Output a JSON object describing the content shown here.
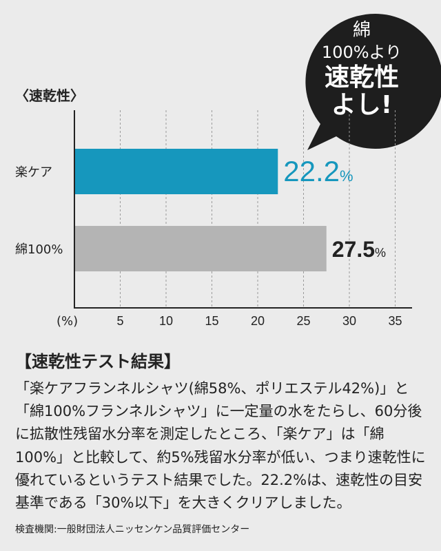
{
  "bubble": {
    "line1": "綿",
    "line2": "100%より",
    "line3": "速乾性",
    "line4": "よし!",
    "color": "#1e1e1e"
  },
  "chart_data": {
    "type": "bar",
    "orientation": "horizontal",
    "title": "〈速乾性〉",
    "categories": [
      "楽ケア",
      "綿100%"
    ],
    "values": [
      22.2,
      27.5
    ],
    "value_labels": [
      "22.2",
      "27.5"
    ],
    "unit_suffix": "%",
    "colors": [
      "#1697bd",
      "#b4b4b4"
    ],
    "label_colors": [
      "#1697bd",
      "#222222"
    ],
    "xlim": [
      0,
      35
    ],
    "xticks": [
      5,
      10,
      15,
      20,
      25,
      30,
      35
    ],
    "xunit_label": "(%)",
    "grid": true
  },
  "result": {
    "title": "【速乾性テスト結果】",
    "body": "「楽ケアフランネルシャツ(綿58%、ポリエステル42%)」と「綿100%フランネルシャツ」に一定量の水をたらし、60分後に拡散性残留水分率を測定したところ、「楽ケア」は「綿100%」と比較して、約5%残留水分率が低い、つまり速乾性に優れているというテスト結果でした。22.2%は、速乾性の目安基準である「30%以下」を大きくクリアしました。",
    "source": "検査機関:一般財団法人ニッセンケン品質評価センター"
  }
}
